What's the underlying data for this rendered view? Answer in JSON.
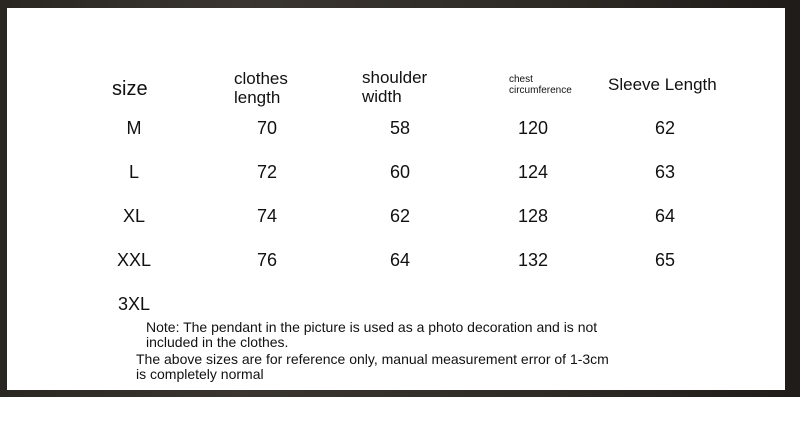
{
  "headers": {
    "size": "size",
    "clothes_length": [
      "clothes",
      "length"
    ],
    "shoulder_width": [
      "shoulder",
      "width"
    ],
    "chest_circumference": [
      "chest",
      "circumference"
    ],
    "sleeve_length": "Sleeve Length"
  },
  "rows": [
    {
      "size": "M",
      "clothes_length": "70",
      "shoulder_width": "58",
      "chest": "120",
      "sleeve": "62"
    },
    {
      "size": "L",
      "clothes_length": "72",
      "shoulder_width": "60",
      "chest": "124",
      "sleeve": "63"
    },
    {
      "size": "XL",
      "clothes_length": "74",
      "shoulder_width": "62",
      "chest": "128",
      "sleeve": "64"
    },
    {
      "size": "XXL",
      "clothes_length": "76",
      "shoulder_width": "64",
      "chest": "132",
      "sleeve": "65"
    },
    {
      "size": "3XL"
    }
  ],
  "notes": {
    "pendant": [
      "Note: The pendant in the picture is used as a photo decoration and is not",
      "included in the clothes."
    ],
    "reference": [
      "The above sizes are for reference only, manual measurement error of 1-3cm",
      "is completely normal"
    ]
  }
}
